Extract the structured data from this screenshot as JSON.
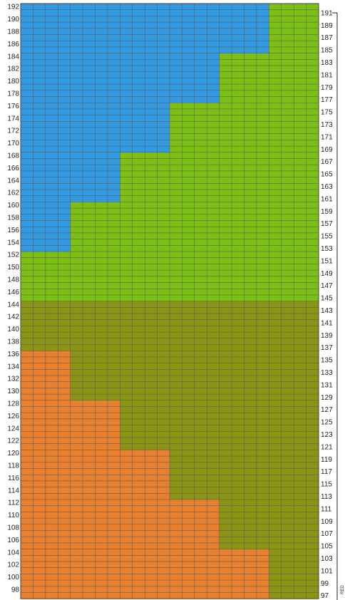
{
  "chart_data": {
    "type": "heatmap",
    "grid": {
      "columns": 24,
      "top_row": 192,
      "bottom_row": 97
    },
    "colors": {
      "blue": "#3399e0",
      "green": "#7cc015",
      "olive": "#8c9415",
      "orange": "#e88030",
      "grid_line": "#555555",
      "background": "#ffffff"
    },
    "regions": [
      {
        "name": "blue",
        "steps": [
          {
            "rows": [
              185,
              192
            ],
            "columns": 20
          },
          {
            "rows": [
              177,
              184
            ],
            "columns": 16
          },
          {
            "rows": [
              169,
              176
            ],
            "columns": 12
          },
          {
            "rows": [
              161,
              168
            ],
            "columns": 8
          },
          {
            "rows": [
              153,
              160
            ],
            "columns": 4
          }
        ]
      },
      {
        "name": "orange",
        "steps": [
          {
            "rows": [
              129,
              136
            ],
            "columns": 4
          },
          {
            "rows": [
              121,
              128
            ],
            "columns": 8
          },
          {
            "rows": [
              113,
              120
            ],
            "columns": 12
          },
          {
            "rows": [
              105,
              112
            ],
            "columns": 16
          },
          {
            "rows": [
              97,
              104
            ],
            "columns": 20
          }
        ]
      }
    ],
    "left_labels": [
      "192",
      "190",
      "188",
      "186",
      "184",
      "182",
      "180",
      "178",
      "176",
      "174",
      "172",
      "170",
      "168",
      "166",
      "164",
      "162",
      "160",
      "158",
      "156",
      "154",
      "152",
      "150",
      "148",
      "146",
      "144",
      "142",
      "140",
      "138",
      "136",
      "134",
      "132",
      "130",
      "128",
      "126",
      "124",
      "122",
      "120",
      "118",
      "116",
      "114",
      "112",
      "110",
      "108",
      "106",
      "104",
      "102",
      "100",
      "98"
    ],
    "right_labels": [
      "191",
      "189",
      "187",
      "185",
      "183",
      "181",
      "179",
      "177",
      "175",
      "173",
      "171",
      "169",
      "167",
      "165",
      "163",
      "161",
      "159",
      "157",
      "155",
      "153",
      "151",
      "149",
      "147",
      "145",
      "143",
      "141",
      "139",
      "137",
      "135",
      "133",
      "131",
      "129",
      "127",
      "125",
      "123",
      "121",
      "119",
      "117",
      "115",
      "113",
      "111",
      "109",
      "107",
      "105",
      "103",
      "101",
      "99",
      "97"
    ],
    "side_text": "RED"
  }
}
